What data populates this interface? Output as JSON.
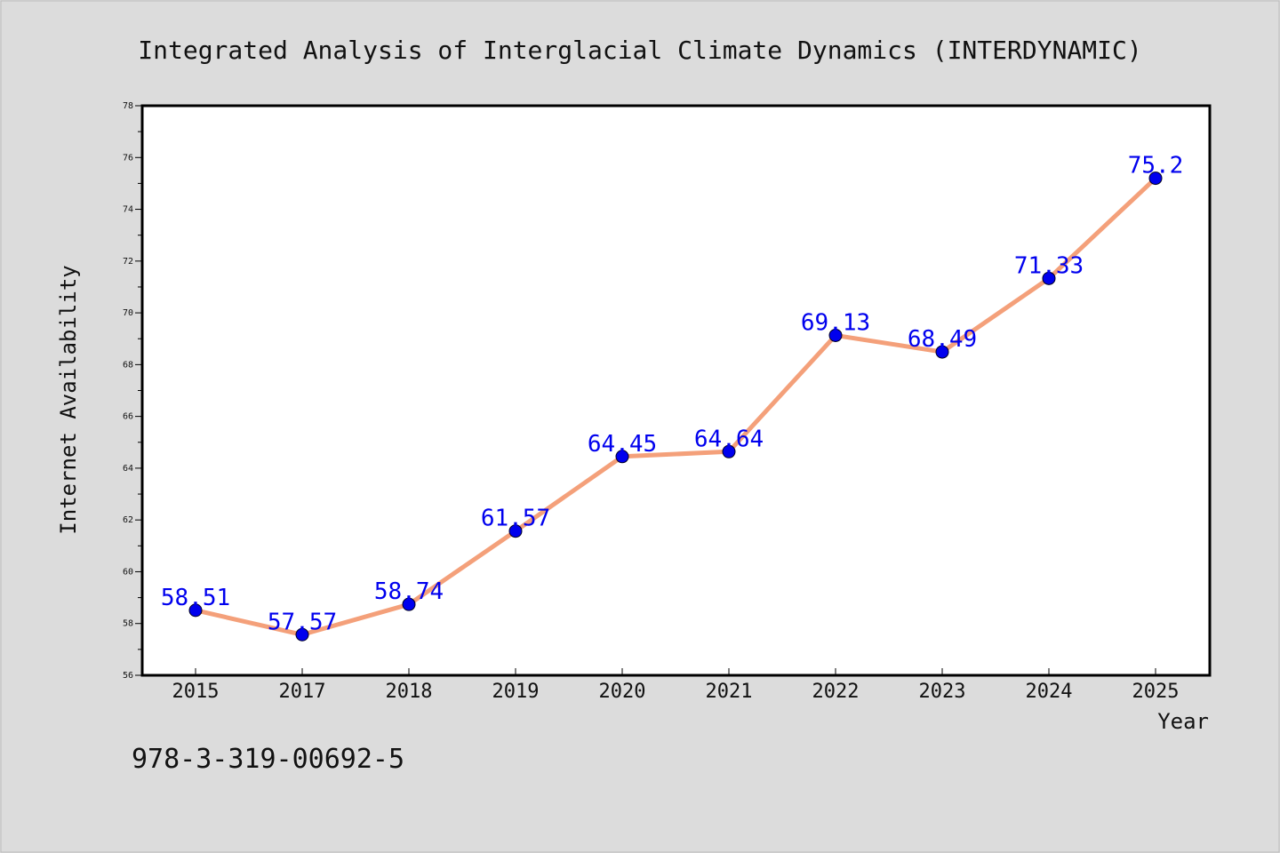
{
  "chart_data": {
    "type": "line",
    "title": "Integrated Analysis of Interglacial Climate Dynamics (INTERDYNAMIC)",
    "xlabel": "Year",
    "ylabel": "Internet Availability",
    "categories": [
      "2015",
      "2017",
      "2018",
      "2019",
      "2020",
      "2021",
      "2022",
      "2023",
      "2024",
      "2025"
    ],
    "series": [
      {
        "values": [
          58.51,
          57.57,
          58.74,
          61.57,
          64.45,
          64.64,
          69.13,
          68.49,
          71.33,
          75.2
        ],
        "labels": [
          "58.51",
          "57.57",
          "58.74",
          "61.57",
          "64.45",
          "64.64",
          "69.13",
          "68.49",
          "71.33",
          "75.2"
        ]
      }
    ],
    "ylim": [
      56,
      78
    ],
    "yticks": [
      "56",
      "58",
      "60",
      "62",
      "64",
      "66",
      "68",
      "70",
      "72",
      "74",
      "76",
      "78"
    ],
    "grid": false,
    "line_color": "#f4a07a",
    "marker_color": "#0000ee",
    "label_color": "#0000ee"
  },
  "footer_text": "978-3-319-00692-5"
}
